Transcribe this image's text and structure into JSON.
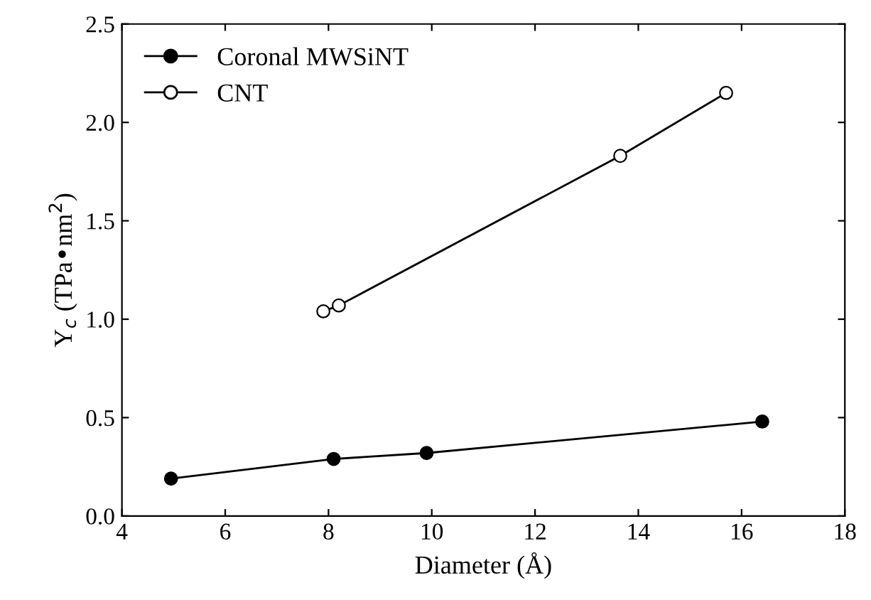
{
  "chart_data": {
    "type": "line",
    "xlabel": "Diameter (Å)",
    "ylabel": "Y$_{c}$ (TPa•nm$^{2}$)",
    "xlim": [
      4,
      18
    ],
    "xticks": [
      4,
      6,
      8,
      10,
      12,
      14,
      16,
      18
    ],
    "ylim": [
      0,
      2.5
    ],
    "yticks": [
      {
        "value": 0,
        "label": "0.0"
      },
      0.5,
      {
        "value": 1,
        "label": "1.0"
      },
      1.5,
      {
        "value": 2,
        "label": "2.0"
      },
      2.5
    ],
    "marker": "circle",
    "line_style": "solid",
    "legend": "top left",
    "grid": false,
    "series": [
      {
        "name": "Coronal MWSiNT",
        "color": "#000000",
        "colors": [
          "#000000",
          "#000000",
          "#000000",
          "#000000"
        ],
        "x": [
          4.95,
          8.1,
          9.9,
          16.4
        ],
        "values": [
          0.19,
          0.29,
          0.32,
          0.48
        ]
      },
      {
        "name": "CNT",
        "color": "#000000",
        "colors": [
          "#ffffff",
          "#ffffff",
          "#ffffff",
          "#ffffff"
        ],
        "x": [
          7.9,
          8.2,
          13.65,
          15.7
        ],
        "values": [
          1.04,
          1.07,
          1.83,
          2.15
        ]
      }
    ]
  }
}
